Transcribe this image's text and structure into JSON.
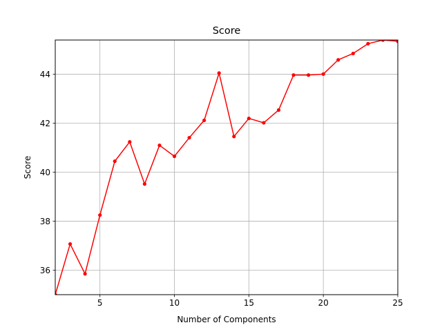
{
  "chart_data": {
    "type": "line",
    "title": "Score",
    "xlabel": "Number of Components",
    "ylabel": "Score",
    "xlim": [
      2,
      25
    ],
    "ylim": [
      35.0,
      45.4
    ],
    "xticks": [
      5,
      10,
      15,
      20,
      25
    ],
    "yticks": [
      36,
      38,
      40,
      42,
      44
    ],
    "grid": true,
    "legend": "none",
    "series": [
      {
        "color": "#ff0000",
        "marker": "circle",
        "x": [
          2,
          3,
          4,
          5,
          6,
          7,
          8,
          9,
          10,
          11,
          12,
          13,
          14,
          15,
          16,
          17,
          18,
          19,
          20,
          21,
          22,
          23,
          24,
          25
        ],
        "values": [
          35.0,
          37.07,
          35.85,
          38.25,
          40.45,
          41.24,
          39.52,
          41.1,
          40.65,
          41.41,
          42.12,
          44.05,
          41.46,
          42.2,
          42.02,
          42.54,
          43.97,
          43.97,
          44.01,
          44.59,
          44.85,
          45.25,
          45.4,
          45.35
        ]
      }
    ]
  }
}
